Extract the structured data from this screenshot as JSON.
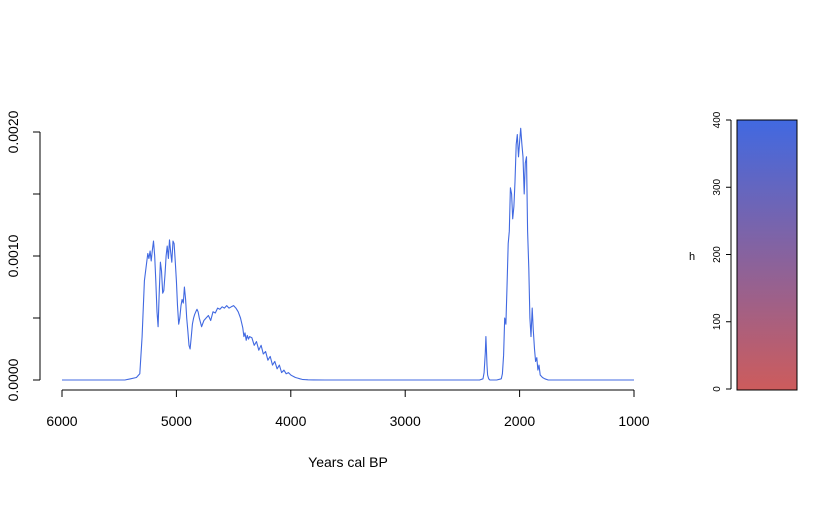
{
  "chart_data": {
    "type": "line",
    "xlabel": "Years cal BP",
    "ylabel": "",
    "xlim": [
      6000,
      1000
    ],
    "ylim": [
      0,
      0.002
    ],
    "x_ticks": [
      6000,
      5000,
      4000,
      3000,
      2000,
      1000
    ],
    "x_tick_labels": [
      "6000",
      "5000",
      "4000",
      "3000",
      "2000",
      "1000"
    ],
    "y_ticks": [
      0,
      0.0005,
      0.001,
      0.0015,
      0.002
    ],
    "y_tick_labels": [
      "0.0000",
      "",
      "0.0010",
      "",
      "0.0020"
    ],
    "grid": false,
    "series": [
      {
        "color": "#4169e1",
        "x": [
          6000,
          5450,
          5400,
          5350,
          5320,
          5300,
          5280,
          5260,
          5250,
          5240,
          5230,
          5220,
          5210,
          5200,
          5190,
          5180,
          5170,
          5160,
          5150,
          5140,
          5130,
          5120,
          5110,
          5100,
          5090,
          5080,
          5070,
          5060,
          5050,
          5040,
          5030,
          5020,
          5010,
          5000,
          4990,
          4980,
          4970,
          4960,
          4950,
          4940,
          4930,
          4920,
          4910,
          4900,
          4890,
          4880,
          4870,
          4860,
          4850,
          4840,
          4830,
          4820,
          4810,
          4800,
          4780,
          4760,
          4740,
          4720,
          4700,
          4680,
          4660,
          4640,
          4620,
          4600,
          4580,
          4560,
          4540,
          4520,
          4500,
          4480,
          4460,
          4440,
          4420,
          4410,
          4400,
          4390,
          4380,
          4370,
          4360,
          4340,
          4320,
          4300,
          4280,
          4260,
          4240,
          4220,
          4200,
          4180,
          4160,
          4140,
          4120,
          4100,
          4080,
          4060,
          4040,
          4020,
          4000,
          3980,
          3960,
          3940,
          3920,
          3900,
          3880,
          3850,
          3800,
          3700,
          2350,
          2320,
          2310,
          2300,
          2295,
          2290,
          2285,
          2280,
          2270,
          2260,
          2250,
          2200,
          2160,
          2150,
          2140,
          2130,
          2120,
          2110,
          2100,
          2090,
          2080,
          2070,
          2060,
          2050,
          2040,
          2030,
          2020,
          2010,
          2000,
          1990,
          1980,
          1970,
          1960,
          1950,
          1940,
          1930,
          1920,
          1910,
          1900,
          1890,
          1880,
          1870,
          1860,
          1850,
          1840,
          1830,
          1820,
          1800,
          1780,
          1750,
          1700,
          1000
        ],
        "y": [
          0,
          0,
          1e-05,
          2e-05,
          5e-05,
          0.00035,
          0.0008,
          0.00095,
          0.00102,
          0.00098,
          0.00104,
          0.00096,
          0.00105,
          0.00112,
          0.001,
          0.0008,
          0.00055,
          0.00043,
          0.0007,
          0.00095,
          0.00088,
          0.0007,
          0.00072,
          0.00085,
          0.001,
          0.00108,
          0.00098,
          0.00113,
          0.00103,
          0.00095,
          0.00112,
          0.0011,
          0.00095,
          0.0008,
          0.0006,
          0.00045,
          0.0005,
          0.0006,
          0.00065,
          0.00062,
          0.00075,
          0.00065,
          0.0005,
          0.0004,
          0.00028,
          0.00025,
          0.00035,
          0.00045,
          0.0005,
          0.00053,
          0.00055,
          0.00057,
          0.00055,
          0.0005,
          0.00043,
          0.00048,
          0.0005,
          0.00052,
          0.00048,
          0.00055,
          0.00054,
          0.00058,
          0.00057,
          0.00059,
          0.00058,
          0.0006,
          0.00058,
          0.00059,
          0.0006,
          0.00058,
          0.00055,
          0.0005,
          0.00042,
          0.00035,
          0.00038,
          0.00032,
          0.00036,
          0.00033,
          0.00035,
          0.00034,
          0.00028,
          0.00031,
          0.00024,
          0.00028,
          0.00021,
          0.00023,
          0.00016,
          0.00019,
          0.00012,
          0.00015,
          9e-05,
          0.00012,
          6e-05,
          8e-05,
          5e-05,
          6e-05,
          4e-05,
          3e-05,
          2e-05,
          1.5e-05,
          1e-05,
          5e-06,
          3e-06,
          2e-06,
          1e-06,
          0,
          0,
          1e-05,
          6e-05,
          0.00022,
          0.00035,
          0.00025,
          0.00012,
          4e-05,
          1e-05,
          0,
          0,
          0,
          1e-05,
          5e-05,
          0.0002,
          0.0005,
          0.00045,
          0.00075,
          0.0011,
          0.0012,
          0.00155,
          0.0015,
          0.0013,
          0.0014,
          0.0016,
          0.0019,
          0.00198,
          0.0018,
          0.00192,
          0.00203,
          0.0019,
          0.0018,
          0.0015,
          0.00175,
          0.0018,
          0.0012,
          0.0009,
          0.0005,
          0.00035,
          0.00058,
          0.0004,
          0.00025,
          0.00015,
          0.00018,
          8e-05,
          0.00012,
          4e-05,
          2e-05,
          1e-05,
          0,
          0,
          0
        ]
      }
    ],
    "colorbar": {
      "label": "h",
      "ticks": [
        0,
        100,
        200,
        300,
        400
      ],
      "tick_labels": [
        "0",
        "100",
        "200",
        "300",
        "400"
      ],
      "range": [
        0,
        400
      ],
      "color_low": "#cd5c5c",
      "color_high": "#4169e1"
    }
  }
}
